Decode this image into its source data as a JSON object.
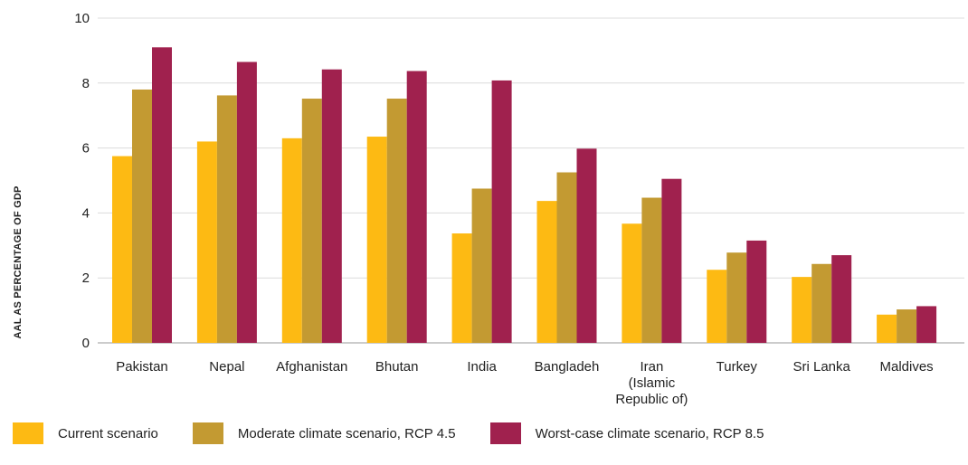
{
  "chart_data": {
    "type": "bar",
    "title": "",
    "xlabel": "",
    "ylabel": "AAL AS PERCENTAGE OF GDP",
    "ylim": [
      0,
      10
    ],
    "yticks": [
      0,
      2,
      4,
      6,
      8,
      10
    ],
    "grid": true,
    "legend_position": "bottom",
    "categories": [
      "Pakistan",
      "Nepal",
      "Afghanistan",
      "Bhutan",
      "India",
      "Bangladeh",
      "Iran (Islamic Republic of)",
      "Turkey",
      "Sri Lanka",
      "Maldives"
    ],
    "category_lines": [
      [
        "Pakistan"
      ],
      [
        "Nepal"
      ],
      [
        "Afghanistan"
      ],
      [
        "Bhutan"
      ],
      [
        "India"
      ],
      [
        "Bangladeh"
      ],
      [
        "Iran",
        "(Islamic",
        "Republic of)"
      ],
      [
        "Turkey"
      ],
      [
        "Sri Lanka"
      ],
      [
        "Maldives"
      ]
    ],
    "series": [
      {
        "name": "Current scenario",
        "color": "#FDBA13",
        "values": [
          5.75,
          6.2,
          6.3,
          6.35,
          3.37,
          4.37,
          3.67,
          2.25,
          2.03,
          0.87
        ]
      },
      {
        "name": "Moderate climate scenario, RCP 4.5",
        "color": "#C39A32",
        "values": [
          7.8,
          7.62,
          7.52,
          7.52,
          4.75,
          5.25,
          4.47,
          2.78,
          2.43,
          1.03
        ]
      },
      {
        "name": "Worst-case climate scenario, RCP 8.5",
        "color": "#A0214E",
        "values": [
          9.1,
          8.65,
          8.42,
          8.37,
          8.08,
          5.98,
          5.05,
          3.15,
          2.7,
          1.13
        ]
      }
    ]
  }
}
